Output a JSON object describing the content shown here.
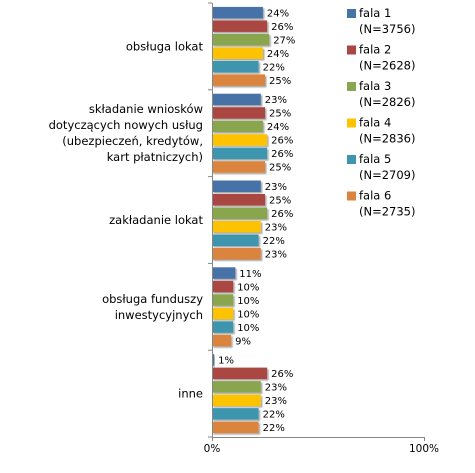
{
  "chart_data": {
    "type": "bar",
    "orientation": "horizontal",
    "categories": [
      [
        "obsługa lokat"
      ],
      [
        "składanie wniosków",
        "dotyczących nowych usług",
        "(ubezpieczeń, kredytów,",
        "kart płatniczych)"
      ],
      [
        "zakładanie lokat"
      ],
      [
        "obsługa funduszy",
        "inwestycyjnych"
      ],
      [
        "inne"
      ]
    ],
    "series": [
      {
        "name": "fala 1",
        "n": "(N=3756)",
        "color": "#4672a8",
        "values": [
          24,
          23,
          23,
          11,
          1
        ]
      },
      {
        "name": "fala 2",
        "n": "(N=2628)",
        "color": "#aa4643",
        "values": [
          26,
          25,
          25,
          10,
          26
        ]
      },
      {
        "name": "fala 3",
        "n": "(N=2826)",
        "color": "#89a54e",
        "values": [
          27,
          24,
          26,
          10,
          23
        ]
      },
      {
        "name": "fala 4",
        "n": "(N=2836)",
        "color": "#fdc300",
        "values": [
          24,
          26,
          23,
          10,
          23
        ]
      },
      {
        "name": "fala 5",
        "n": "(N=2709)",
        "color": "#3d96ae",
        "values": [
          22,
          26,
          22,
          10,
          22
        ]
      },
      {
        "name": "fala 6",
        "n": "(N=2735)",
        "color": "#db843d",
        "values": [
          25,
          25,
          23,
          9,
          22
        ]
      }
    ],
    "value_suffix": "%",
    "xlim": [
      0,
      100
    ],
    "x_ticks": [
      "0%",
      "100%"
    ],
    "legend_position": "right",
    "grid": false
  }
}
